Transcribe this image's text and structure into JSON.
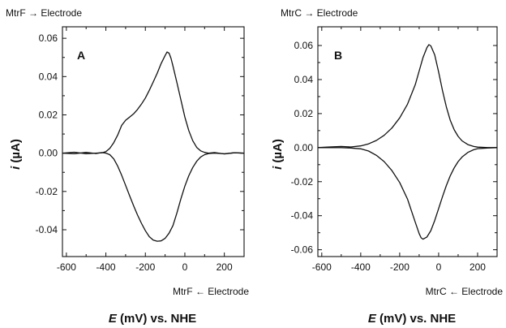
{
  "chart_data": [
    {
      "type": "line",
      "panel_label": "A",
      "forward_label": "MtrF → Electrode",
      "reverse_label": "MtrF ← Electrode",
      "xlabel_var": "E",
      "xlabel_rest": " (mV) vs. NHE",
      "ylabel_var": "i",
      "ylabel_rest": " (µA)",
      "xlim": [
        -620,
        300
      ],
      "ylim": [
        -0.054,
        0.066
      ],
      "xticks": [
        -600,
        -400,
        -200,
        0,
        200
      ],
      "xtick_labels": [
        "-600",
        "-400",
        "-200",
        "0",
        "200"
      ],
      "yticks": [
        -0.04,
        -0.02,
        0.0,
        0.02,
        0.04,
        0.06
      ],
      "ytick_labels": [
        "-0.04",
        "-0.02",
        "0.00",
        "0.02",
        "0.04",
        "0.06"
      ],
      "series": [
        {
          "x": [
            -620,
            -560,
            -500,
            -450,
            -420,
            -400,
            -380,
            -360,
            -340,
            -320,
            -300,
            -280,
            -260,
            -240,
            -220,
            -200,
            -180,
            -160,
            -140,
            -120,
            -100,
            -90,
            -80,
            -70,
            -60,
            -40,
            -20,
            0,
            20,
            40,
            60,
            80,
            100,
            120,
            150,
            200,
            250,
            300
          ],
          "y": [
            0.0,
            0.0005,
            -0.0003,
            0.0,
            0.0002,
            0.0008,
            0.0025,
            0.0055,
            0.0095,
            0.0145,
            0.0172,
            0.0188,
            0.0205,
            0.0228,
            0.0256,
            0.0288,
            0.0328,
            0.0372,
            0.0418,
            0.0468,
            0.051,
            0.0528,
            0.0522,
            0.0495,
            0.0455,
            0.0368,
            0.0278,
            0.0188,
            0.0118,
            0.0065,
            0.003,
            0.0012,
            0.0004,
            0.0,
            0.0003,
            -0.0004,
            0.0002,
            0.0
          ]
        },
        {
          "x": [
            300,
            250,
            200,
            150,
            120,
            100,
            80,
            60,
            40,
            20,
            0,
            -20,
            -40,
            -60,
            -80,
            -100,
            -120,
            -140,
            -160,
            -180,
            -200,
            -220,
            -240,
            -260,
            -280,
            -300,
            -320,
            -340,
            -360,
            -380,
            -400,
            -420,
            -450,
            -500,
            -560,
            -620
          ],
          "y": [
            0.0,
            0.0002,
            -0.0003,
            0.0,
            -0.0002,
            -0.0008,
            -0.002,
            -0.0042,
            -0.0075,
            -0.0118,
            -0.0172,
            -0.0238,
            -0.0312,
            -0.0378,
            -0.0418,
            -0.0445,
            -0.0458,
            -0.046,
            -0.0454,
            -0.0436,
            -0.0405,
            -0.0366,
            -0.0322,
            -0.0274,
            -0.0222,
            -0.0168,
            -0.0115,
            -0.0068,
            -0.003,
            -0.0008,
            0.0,
            0.0003,
            -0.0002,
            0.0004,
            -0.0003,
            0.0
          ]
        }
      ]
    },
    {
      "type": "line",
      "panel_label": "B",
      "forward_label": "MtrC → Electrode",
      "reverse_label": "MtrC ← Electrode",
      "xlabel_var": "E",
      "xlabel_rest": " (mV) vs. NHE",
      "ylabel_var": "i",
      "ylabel_rest": " (µA)",
      "xlim": [
        -620,
        300
      ],
      "ylim": [
        -0.064,
        0.071
      ],
      "xticks": [
        -600,
        -400,
        -200,
        0,
        200
      ],
      "xtick_labels": [
        "-600",
        "-400",
        "-200",
        "0",
        "200"
      ],
      "yticks": [
        -0.06,
        -0.04,
        -0.02,
        0.0,
        0.02,
        0.04,
        0.06
      ],
      "ytick_labels": [
        "-0.06",
        "-0.04",
        "-0.02",
        "0.00",
        "0.02",
        "0.04",
        "0.06"
      ],
      "series": [
        {
          "x": [
            -620,
            -560,
            -500,
            -450,
            -400,
            -360,
            -320,
            -280,
            -240,
            -200,
            -160,
            -120,
            -100,
            -80,
            -60,
            -50,
            -40,
            -20,
            0,
            20,
            40,
            60,
            80,
            100,
            120,
            150,
            180,
            200,
            250,
            300
          ],
          "y": [
            0.0,
            0.0004,
            0.0007,
            0.0004,
            0.001,
            0.0022,
            0.0042,
            0.0072,
            0.0115,
            0.0175,
            0.0255,
            0.037,
            0.045,
            0.053,
            0.0588,
            0.0605,
            0.0598,
            0.0545,
            0.0445,
            0.0335,
            0.0238,
            0.016,
            0.0104,
            0.0066,
            0.004,
            0.0018,
            0.0007,
            0.0003,
            0.0,
            0.0
          ]
        },
        {
          "x": [
            300,
            250,
            200,
            180,
            150,
            120,
            100,
            80,
            60,
            40,
            20,
            0,
            -20,
            -40,
            -60,
            -80,
            -90,
            -100,
            -120,
            -140,
            -160,
            -200,
            -240,
            -280,
            -320,
            -360,
            -400,
            -450,
            -500,
            -560,
            -620
          ],
          "y": [
            0.0,
            -0.0002,
            -0.0006,
            -0.0012,
            -0.0028,
            -0.0055,
            -0.0082,
            -0.0118,
            -0.0165,
            -0.0222,
            -0.0288,
            -0.0358,
            -0.0428,
            -0.0488,
            -0.0525,
            -0.0538,
            -0.053,
            -0.0505,
            -0.0438,
            -0.037,
            -0.0302,
            -0.0205,
            -0.0135,
            -0.0082,
            -0.0045,
            -0.002,
            -0.0007,
            -0.0002,
            0.0,
            0.0,
            0.0
          ]
        }
      ]
    }
  ]
}
